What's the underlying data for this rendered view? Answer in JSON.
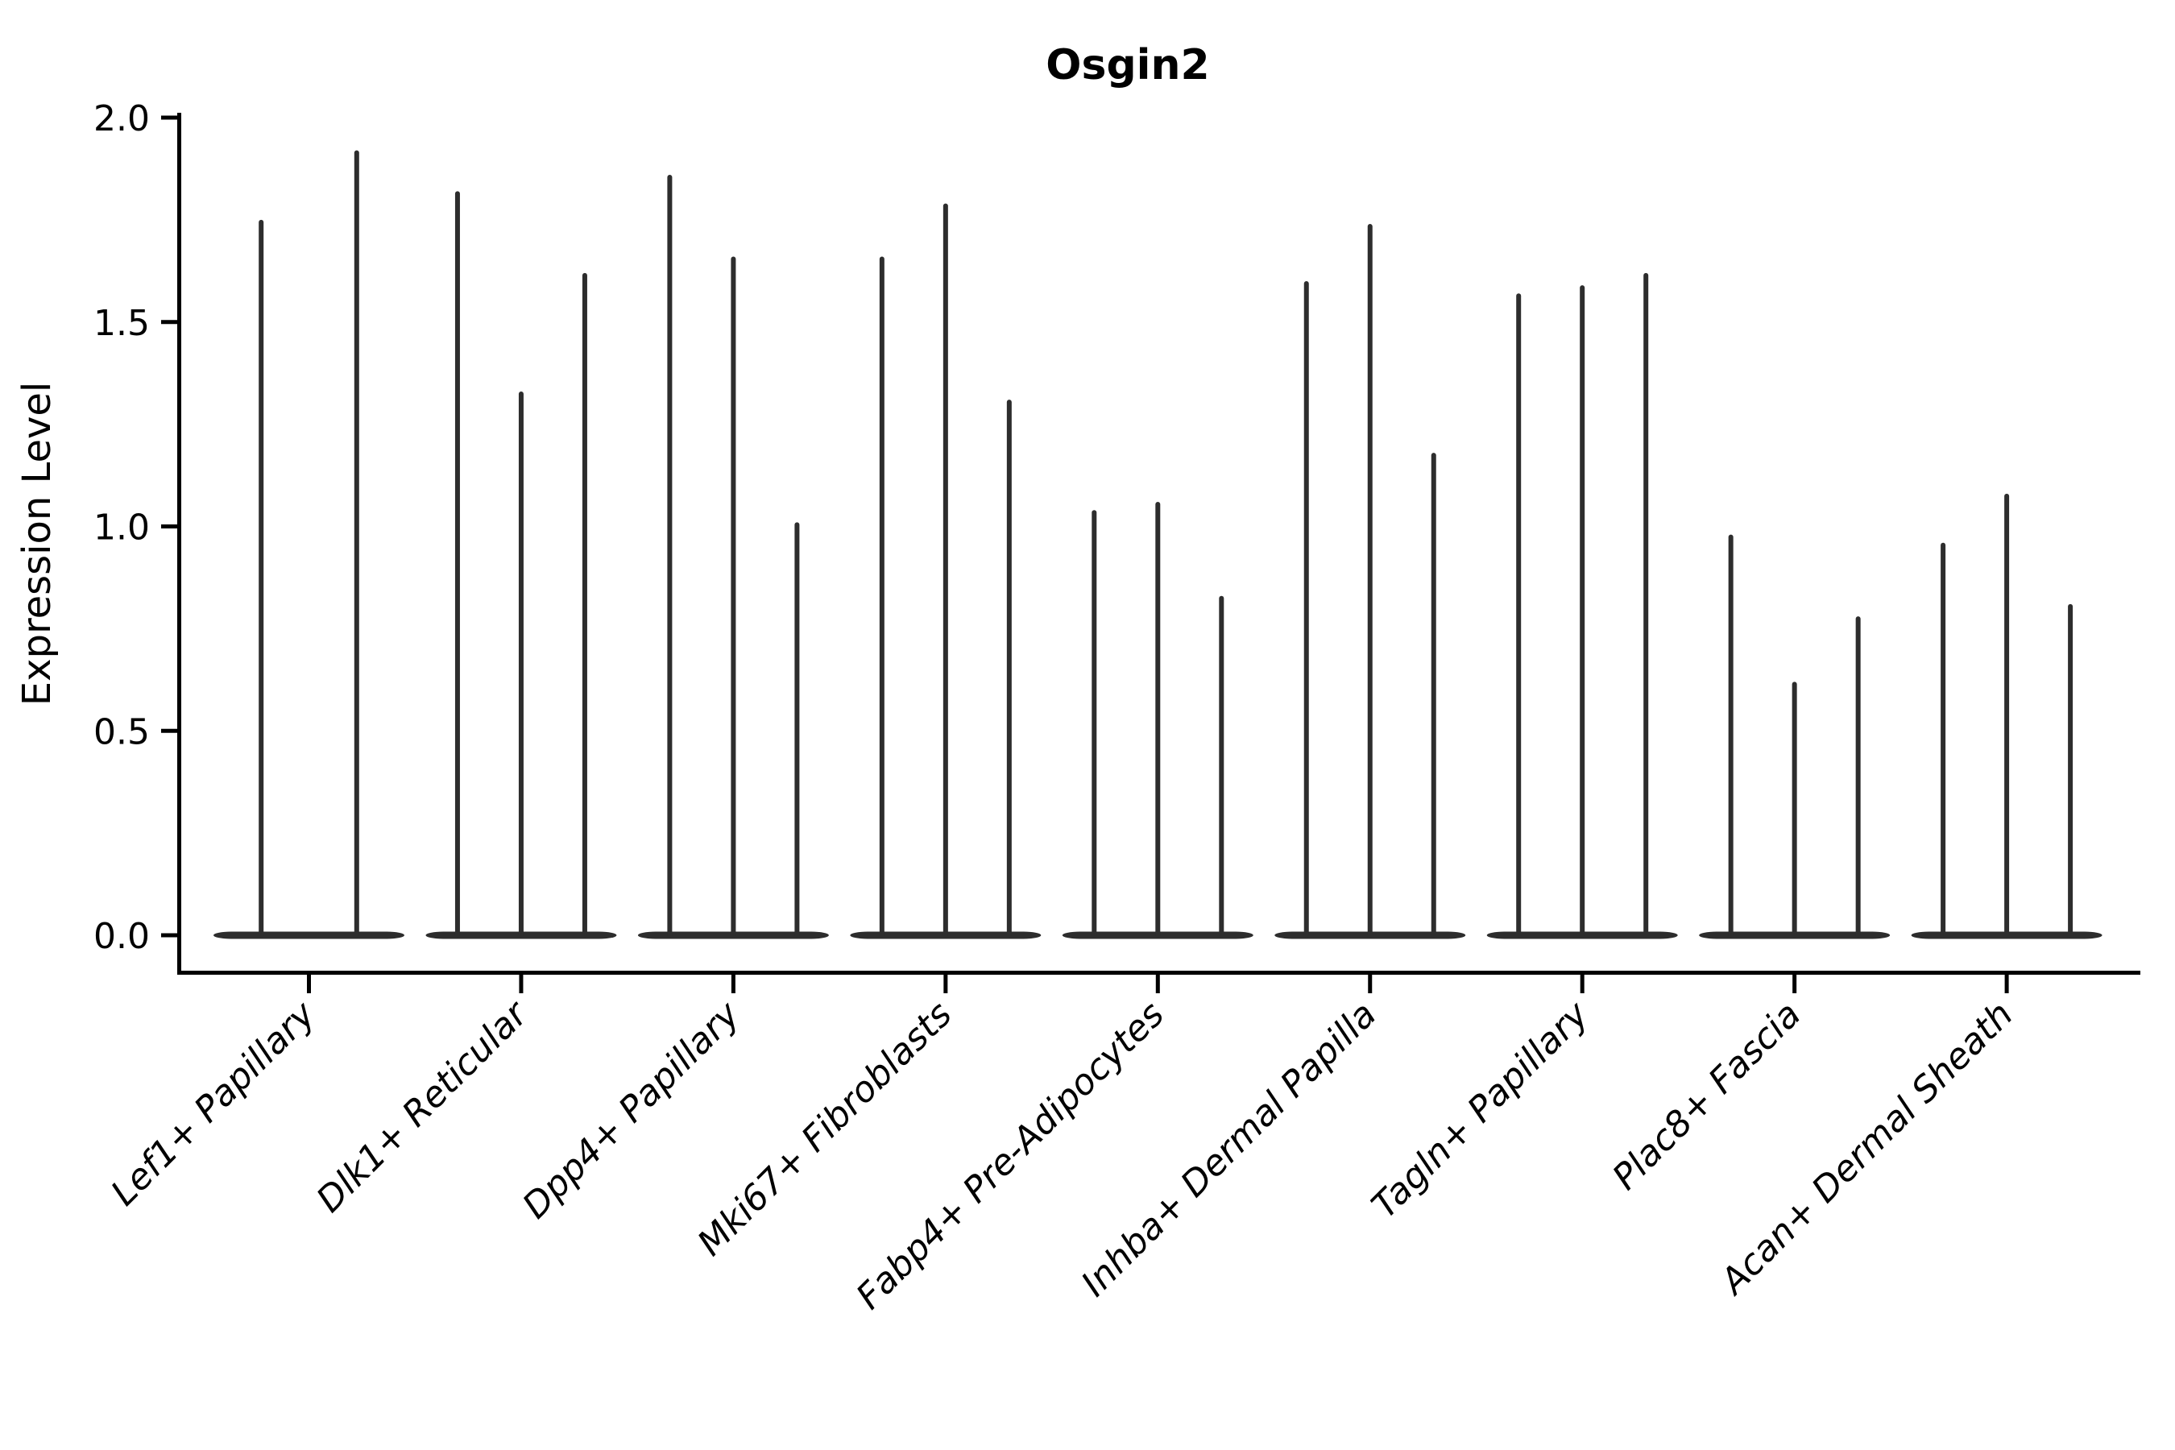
{
  "title": "Osgin2",
  "y_axis": {
    "label": "Expression Level",
    "tick_labels": [
      "2.0",
      "1.5",
      "1.0",
      "0.5",
      "0.0"
    ],
    "tick_values": [
      2.0,
      1.5,
      1.0,
      0.5,
      0.0
    ]
  },
  "x_axis": {
    "categories": [
      "Lef1+ Papillary",
      "Dlk1+ Reticular",
      "Dpp4+ Papillary",
      "Mki67+ Fibroblasts",
      "Fabp4+ Pre-Adipocytes",
      "Inhba+ Dermal Papilla",
      "Tagln+ Papillary",
      "Plac8+ Fascia",
      "Acan+ Dermal Sheath"
    ]
  },
  "colors": {
    "violin": "#2d2d2d",
    "axis": "#000000",
    "text": "#000000",
    "background": "#ffffff"
  },
  "chart_data": {
    "type": "violin",
    "title": "Osgin2",
    "xlabel": "",
    "ylabel": "Expression Level",
    "ylim": [
      0.0,
      2.0
    ],
    "grid": false,
    "legend": "none",
    "note": "Single-cell expression violin plot; each violin is a narrow spike rising from a flat dense base at 0 up to the violin's maximum expression value.",
    "categories": [
      "Lef1+ Papillary",
      "Dlk1+ Reticular",
      "Dpp4+ Papillary",
      "Mki67+ Fibroblasts",
      "Fabp4+ Pre-Adipocytes",
      "Inhba+ Dermal Papilla",
      "Tagln+ Papillary",
      "Plac8+ Fascia",
      "Acan+ Dermal Sheath"
    ],
    "violins": [
      {
        "category": "Lef1+ Papillary",
        "spike_maxima": [
          1.75,
          1.92
        ]
      },
      {
        "category": "Dlk1+ Reticular",
        "spike_maxima": [
          1.82,
          1.33,
          1.62
        ]
      },
      {
        "category": "Dpp4+ Papillary",
        "spike_maxima": [
          1.86,
          1.66,
          1.01
        ]
      },
      {
        "category": "Mki67+ Fibroblasts",
        "spike_maxima": [
          1.66,
          1.79,
          1.31
        ]
      },
      {
        "category": "Fabp4+ Pre-Adipocytes",
        "spike_maxima": [
          1.04,
          1.06,
          0.83
        ]
      },
      {
        "category": "Inhba+ Dermal Papilla",
        "spike_maxima": [
          1.6,
          1.74,
          1.18
        ]
      },
      {
        "category": "Tagln+ Papillary",
        "spike_maxima": [
          1.57,
          1.59,
          1.62
        ]
      },
      {
        "category": "Plac8+ Fascia",
        "spike_maxima": [
          0.98,
          0.62,
          0.78
        ]
      },
      {
        "category": "Acan+ Dermal Sheath",
        "spike_maxima": [
          0.96,
          1.08,
          0.81
        ]
      }
    ],
    "baseline_value": 0.0
  }
}
